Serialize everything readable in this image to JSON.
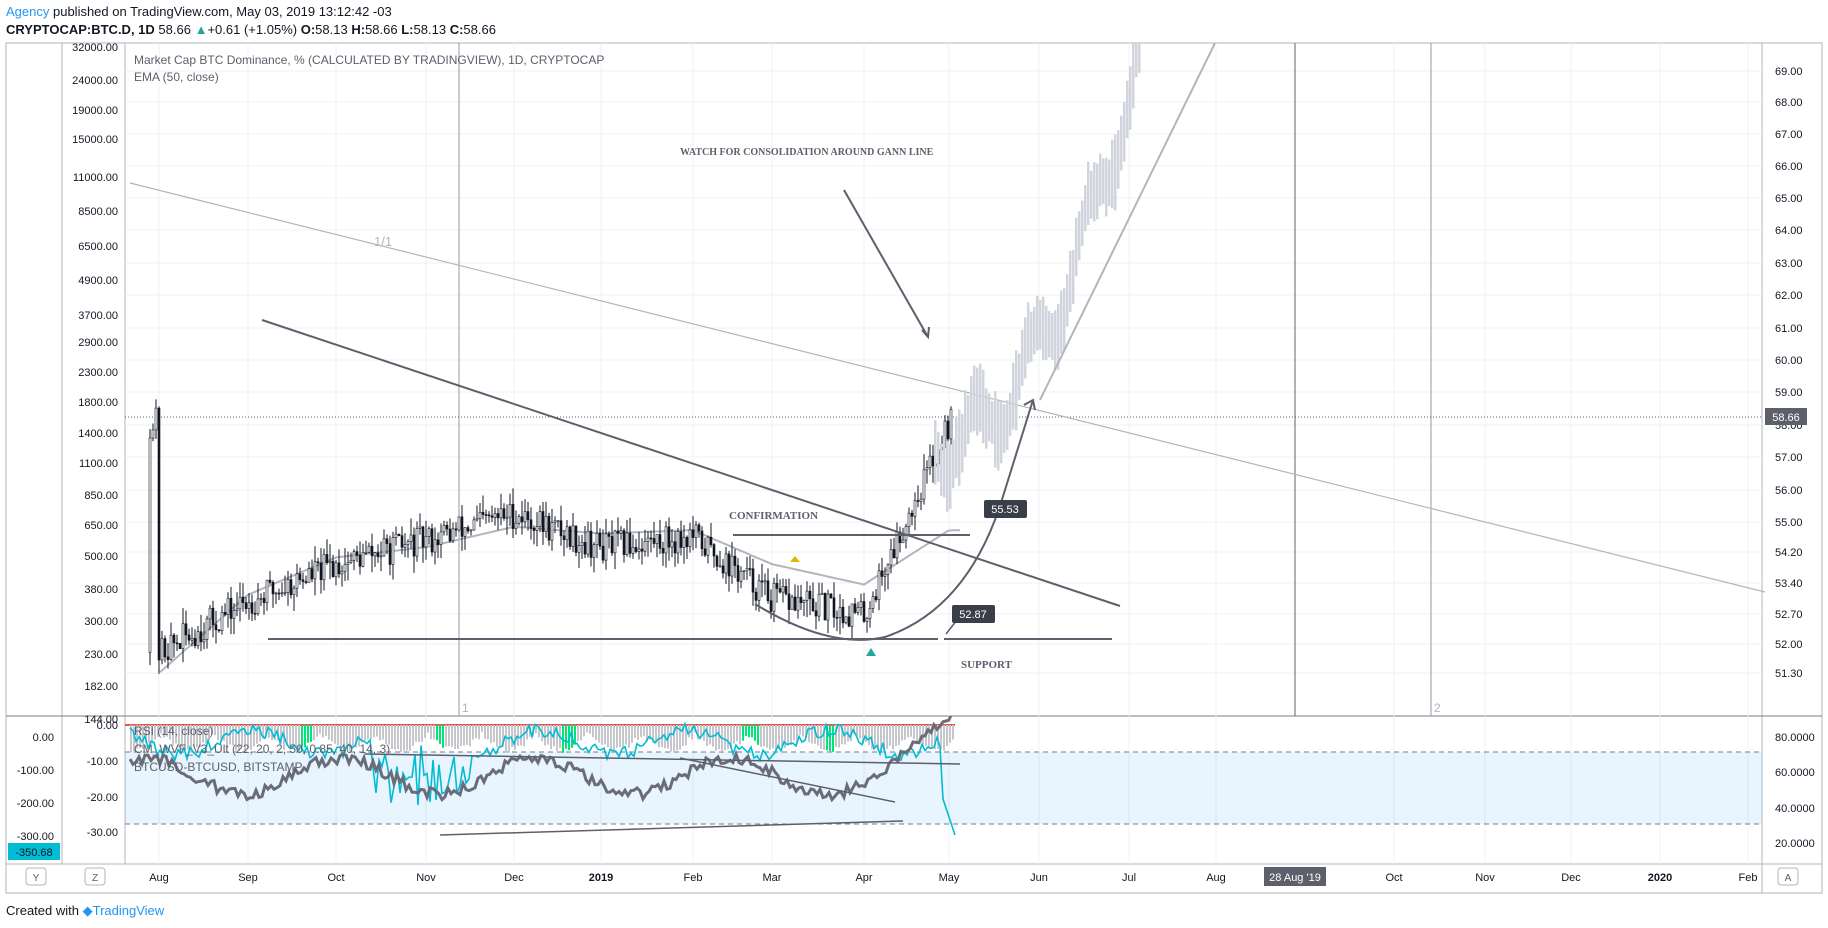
{
  "header": {
    "publisher": "Agency",
    "published_text": " published on TradingView.com, May 03, 2019 13:12:42 -03",
    "symbol": "CRYPTOCAP:BTC.D, 1D",
    "last": "58.66",
    "change": "+0.61 (+1.05%)",
    "open_label": "O:",
    "open": "58.13",
    "high_label": "H:",
    "high": "58.66",
    "low_label": "L:",
    "low": "58.13",
    "close_label": "C:",
    "close": "58.66"
  },
  "main_pane": {
    "title": "Market Cap BTC Dominance, % (CALCULATED BY TRADINGVIEW), 1D, CRYPTOCAP",
    "ema_label": "EMA (50, close)",
    "left_axis": [
      "32000.00",
      "24000.00",
      "19000.00",
      "15000.00",
      "11000.00",
      "8500.00",
      "6500.00",
      "4900.00",
      "3700.00",
      "2900.00",
      "2300.00",
      "1800.00",
      "1400.00",
      "1100.00",
      "850.00",
      "650.00",
      "500.00",
      "380.00",
      "300.00",
      "230.00",
      "182.00",
      "144.00"
    ],
    "right_axis": [
      "69.00",
      "68.00",
      "67.00",
      "66.00",
      "65.00",
      "64.00",
      "63.00",
      "62.00",
      "61.00",
      "60.00",
      "59.00",
      "58.00",
      "57.00",
      "56.00",
      "55.00",
      "54.20",
      "53.40",
      "52.70",
      "52.00",
      "51.30"
    ],
    "price_tag": "58.66",
    "annotations": {
      "watch": "WATCH FOR CONSOLIDATION AROUND GANN LINE",
      "confirmation": "CONFIRMATION",
      "support": "SUPPORT",
      "gann": "1/1",
      "label_5553": "55.53",
      "label_5287": "52.87",
      "cycle1": "1",
      "cycle2": "2"
    }
  },
  "lower_pane": {
    "rsi_label": "RSI (14, close)",
    "wvf_label": "CM_WVF_V3_Ult (22, 20, 2, 50, 0.85, 40, 14, 3)",
    "spread_label": "BTCUSD-BTCUSD, BITSTAMP",
    "left_axis": [
      "0.00",
      "-100.00",
      "-200.00",
      "-300.00"
    ],
    "left_tag": "-350.68",
    "mid_axis": [
      "0.00",
      "-10.00",
      "-20.00",
      "-30.00"
    ],
    "right_axis": [
      "80.0000",
      "60.0000",
      "40.0000",
      "20.0000"
    ]
  },
  "time_axis": {
    "labels": [
      "Aug",
      "Sep",
      "Oct",
      "Nov",
      "Dec",
      "2019",
      "Feb",
      "Mar",
      "Apr",
      "May",
      "Jun",
      "Jul",
      "Aug",
      "Oct",
      "Nov",
      "Dec",
      "2020",
      "Feb"
    ],
    "cursor_label": "28 Aug '19",
    "left_button": "Y",
    "left_button2": "Z",
    "right_button": "A"
  },
  "footer": {
    "created": "Created with",
    "brand": "TradingView"
  },
  "colors": {
    "accent": "#2196f3",
    "up": "#26a69a",
    "rsi": "#00bcd4",
    "line": "#5d606b"
  },
  "chart_data": {
    "type": "line",
    "title": "Market Cap BTC Dominance, % (CALCULATED BY TRADINGVIEW), 1D, CRYPTOCAP",
    "xlabel": "",
    "ylabel": "",
    "x": [
      "Aug",
      "Sep",
      "Oct",
      "Nov",
      "Dec",
      "2019",
      "Feb",
      "Mar",
      "Apr",
      "May"
    ],
    "ylim": [
      51.3,
      69.0
    ],
    "series": [
      {
        "name": "BTC.D",
        "values": [
          51.9,
          53.4,
          54.5,
          55.2,
          56.0,
          55.0,
          55.3,
          53.5,
          53.0,
          58.66
        ]
      },
      {
        "name": "EMA (50, close)",
        "values": [
          51.3,
          53.6,
          54.7,
          55.0,
          55.6,
          55.4,
          55.5,
          54.5,
          53.9,
          55.5
        ]
      }
    ]
  }
}
